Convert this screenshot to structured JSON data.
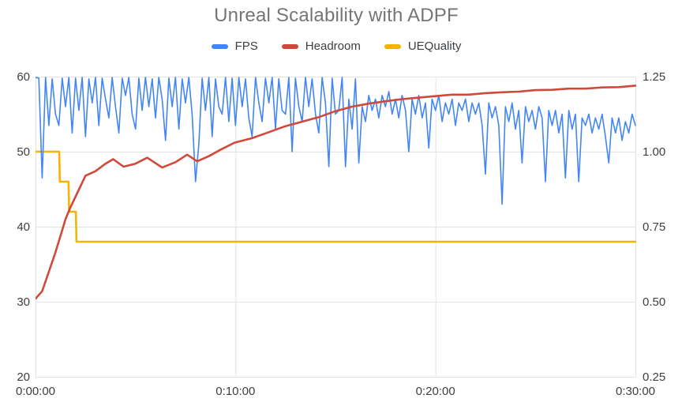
{
  "chart_data": {
    "type": "line",
    "title": "Unreal Scalability with ADPF",
    "legend_position": "top",
    "grid": true,
    "colors": {
      "title": "#757575",
      "axis_labels": "#3C4043",
      "grid": "#E3E3E3"
    },
    "x_axis": {
      "unit": "time",
      "range_seconds": [
        0,
        1800
      ],
      "ticks": [
        {
          "seconds": 0,
          "label": "0:00:00"
        },
        {
          "seconds": 600,
          "label": "0:10:00"
        },
        {
          "seconds": 1200,
          "label": "0:20:00"
        },
        {
          "seconds": 1800,
          "label": "0:30:00"
        }
      ]
    },
    "y_axis_left": {
      "range": [
        20,
        60
      ],
      "tick_values": [
        20,
        30,
        40,
        50,
        60
      ],
      "tick_labels": [
        "20",
        "30",
        "40",
        "50",
        "60"
      ]
    },
    "y_axis_right": {
      "range": [
        0.25,
        1.25
      ],
      "tick_values": [
        0.25,
        0.5,
        0.75,
        1.0,
        1.25
      ],
      "tick_labels": [
        "0.25",
        "0.50",
        "0.75",
        "1.00",
        "1.25"
      ]
    },
    "series": [
      {
        "name": "FPS",
        "color": "#4285F4",
        "axis": "left",
        "line_width": 1.6,
        "sampling": {
          "t0": 0,
          "dt": 10
        },
        "values": [
          59.9,
          59.8,
          46.5,
          59.9,
          53.5,
          59.7,
          55,
          53.5,
          59.8,
          56,
          59.9,
          52.5,
          59.8,
          55.5,
          59.9,
          52,
          59.7,
          56.5,
          59.9,
          53.5,
          59.8,
          57,
          54.5,
          59.9,
          56,
          52.5,
          59.8,
          57.5,
          59.9,
          55,
          53,
          59.8,
          55.5,
          59.9,
          56,
          59.7,
          54.5,
          59.9,
          57,
          51.5,
          59.8,
          56,
          59.9,
          53,
          59.7,
          56.5,
          59.9,
          55,
          46,
          51,
          59.8,
          55.5,
          59.9,
          52,
          59.7,
          56,
          55,
          59.9,
          54,
          59.8,
          53.5,
          59.9,
          56,
          59.7,
          54.5,
          52,
          59.9,
          56.5,
          54,
          59.8,
          56.5,
          59.9,
          53,
          59.7,
          55.5,
          55,
          59.9,
          50,
          59.8,
          56,
          54,
          59.9,
          56,
          59.7,
          55,
          52.5,
          59.9,
          56.5,
          48,
          59.8,
          55,
          55.5,
          59.9,
          48,
          57,
          53,
          59.7,
          48.5,
          56,
          54,
          57.5,
          55.5,
          57,
          54.5,
          57.5,
          56,
          58,
          55,
          57,
          54.5,
          57.5,
          55.5,
          50,
          57,
          55,
          57.5,
          54.5,
          56.5,
          50.5,
          57,
          55.5,
          57.5,
          54,
          56.5,
          55,
          57,
          53.5,
          56.5,
          55.5,
          57,
          54,
          56.5,
          55,
          56.5,
          53.5,
          47,
          56.5,
          54.5,
          56,
          53.5,
          43,
          56,
          54,
          56.5,
          53,
          55.5,
          48.5,
          56,
          54,
          55.5,
          53,
          56,
          54.5,
          46,
          55.5,
          53.5,
          55.5,
          52.5,
          55,
          46.5,
          55.5,
          53,
          55,
          46,
          54.5,
          53.5,
          55,
          52.5,
          54.5,
          53,
          55,
          52,
          48.5,
          54.5,
          52.5,
          54.5,
          51.5,
          54,
          52.5,
          55,
          53.5
        ]
      },
      {
        "name": "Headroom",
        "color": "#D0493B",
        "axis": "right",
        "line_width": 2.6,
        "points": [
          [
            0,
            0.51
          ],
          [
            20,
            0.535
          ],
          [
            40,
            0.6
          ],
          [
            60,
            0.665
          ],
          [
            75,
            0.72
          ],
          [
            90,
            0.775
          ],
          [
            105,
            0.815
          ],
          [
            120,
            0.85
          ],
          [
            135,
            0.885
          ],
          [
            150,
            0.92
          ],
          [
            180,
            0.935
          ],
          [
            210,
            0.96
          ],
          [
            233,
            0.975
          ],
          [
            264,
            0.95
          ],
          [
            300,
            0.96
          ],
          [
            335,
            0.98
          ],
          [
            380,
            0.947
          ],
          [
            420,
            0.965
          ],
          [
            455,
            0.99
          ],
          [
            485,
            0.968
          ],
          [
            520,
            0.985
          ],
          [
            556,
            1.007
          ],
          [
            597,
            1.03
          ],
          [
            650,
            1.045
          ],
          [
            700,
            1.065
          ],
          [
            750,
            1.085
          ],
          [
            800,
            1.1
          ],
          [
            850,
            1.115
          ],
          [
            900,
            1.135
          ],
          [
            950,
            1.15
          ],
          [
            1000,
            1.16
          ],
          [
            1050,
            1.168
          ],
          [
            1100,
            1.175
          ],
          [
            1150,
            1.18
          ],
          [
            1200,
            1.185
          ],
          [
            1250,
            1.19
          ],
          [
            1300,
            1.19
          ],
          [
            1350,
            1.195
          ],
          [
            1400,
            1.198
          ],
          [
            1450,
            1.2
          ],
          [
            1500,
            1.205
          ],
          [
            1550,
            1.206
          ],
          [
            1600,
            1.21
          ],
          [
            1650,
            1.21
          ],
          [
            1700,
            1.214
          ],
          [
            1750,
            1.215
          ],
          [
            1800,
            1.22
          ]
        ]
      },
      {
        "name": "UEQuality",
        "color": "#F4B400",
        "axis": "right",
        "line_width": 2.6,
        "points": [
          [
            0,
            1.0
          ],
          [
            71,
            1.0
          ],
          [
            73,
            0.9
          ],
          [
            99,
            0.9
          ],
          [
            101,
            0.8
          ],
          [
            121,
            0.8
          ],
          [
            123,
            0.7
          ],
          [
            1800,
            0.7
          ]
        ]
      }
    ]
  }
}
